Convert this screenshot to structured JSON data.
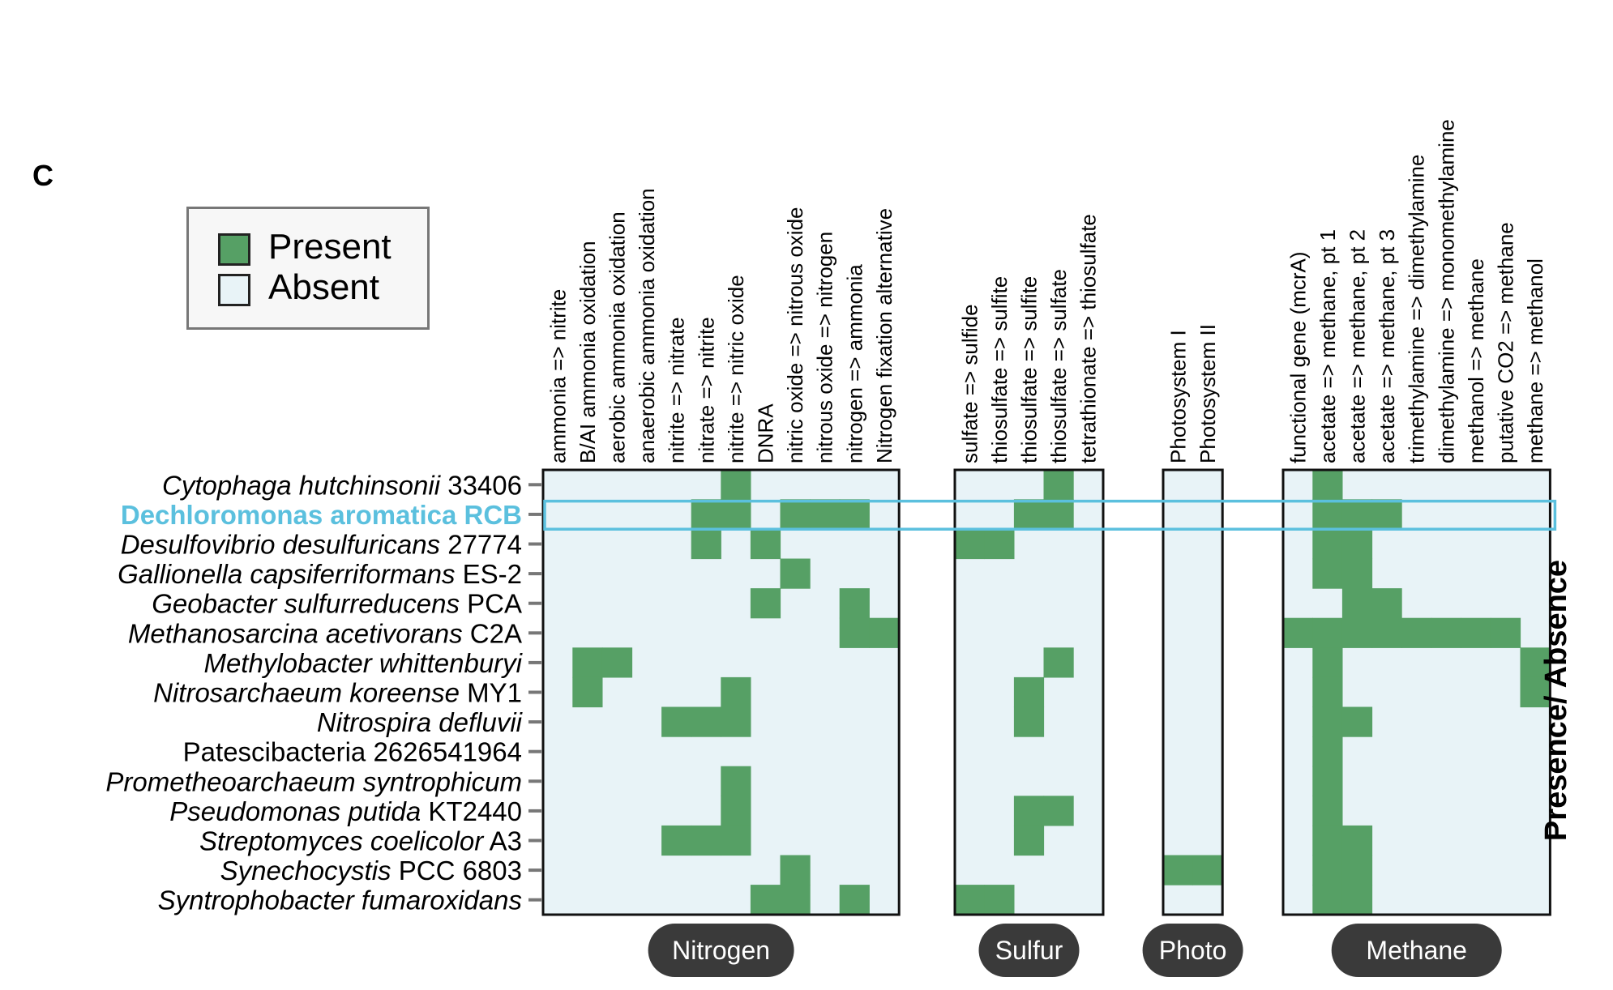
{
  "panel_letter": "C",
  "legend": {
    "present": "Present",
    "absent": "Absent"
  },
  "colors": {
    "present": "#56a065",
    "absent": "#e8f3f7",
    "highlight": "#5bc0de",
    "pill": "#3a3a3a",
    "frame": "#111111"
  },
  "chart_data": {
    "type": "heatmap",
    "value_labels": {
      "1": "Present",
      "0": "Absent"
    },
    "ylabel": "Presence/ Absence",
    "highlighted_row": 1,
    "rows": [
      {
        "name": "Cytophaga hutchinsonii",
        "italic": "Cytophaga hutchinsonii",
        "plain": " 33406",
        "highlight": false
      },
      {
        "name": "Dechloromonas aromatica RCB",
        "italic": "",
        "plain": "Dechloromonas aromatica RCB",
        "highlight": true
      },
      {
        "name": "Desulfovibrio desulfuricans",
        "italic": "Desulfovibrio desulfuricans",
        "plain": " 27774",
        "highlight": false
      },
      {
        "name": "Gallionella capsiferriformans",
        "italic": "Gallionella capsiferriformans",
        "plain": " ES-2",
        "highlight": false
      },
      {
        "name": "Geobacter sulfurreducens",
        "italic": "Geobacter sulfurreducens",
        "plain": " PCA",
        "highlight": false
      },
      {
        "name": "Methanosarcina acetivorans",
        "italic": "Methanosarcina acetivorans",
        "plain": " C2A",
        "highlight": false
      },
      {
        "name": "Methylobacter whittenburyi",
        "italic": "Methylobacter whittenburyi",
        "plain": "",
        "highlight": false
      },
      {
        "name": "Nitrosarchaeum koreense",
        "italic": "Nitrosarchaeum koreense",
        "plain": " MY1",
        "highlight": false
      },
      {
        "name": "Nitrospira defluvii",
        "italic": "Nitrospira defluvii",
        "plain": "",
        "highlight": false
      },
      {
        "name": "Patescibacteria 2626541964",
        "italic": "",
        "plain": "Patescibacteria 2626541964",
        "highlight": false
      },
      {
        "name": "Prometheoarchaeum syntrophicum",
        "italic": "Prometheoarchaeum syntrophicum",
        "plain": "",
        "highlight": false
      },
      {
        "name": "Pseudomonas putida",
        "italic": "Pseudomonas putida",
        "plain": " KT2440",
        "highlight": false
      },
      {
        "name": "Streptomyces coelicolor",
        "italic": "Streptomyces coelicolor",
        "plain": " A3",
        "highlight": false
      },
      {
        "name": "Synechocystis",
        "italic": "Synechocystis",
        "plain": " PCC 6803",
        "highlight": false
      },
      {
        "name": "Syntrophobacter fumaroxidans",
        "italic": "Syntrophobacter fumaroxidans",
        "plain": "",
        "highlight": false
      }
    ],
    "groups": [
      {
        "name": "Nitrogen",
        "columns": [
          "ammonia => nitrite",
          "B/AI ammonia oxidation",
          "aerobic ammonia oxidation",
          "anaerobic ammonia oxidation",
          "nitrite => nitrate",
          "nitrate => nitrite",
          "nitrite => nitric oxide",
          "DNRA",
          "nitric oxide => nitrous oxide",
          "nitrous oxide => nitrogen",
          "nitrogen => ammonia",
          "Nitrogen fixation alternative"
        ],
        "matrix": [
          [
            0,
            0,
            0,
            0,
            0,
            0,
            1,
            0,
            0,
            0,
            0,
            0
          ],
          [
            0,
            0,
            0,
            0,
            0,
            1,
            1,
            0,
            1,
            1,
            1,
            0
          ],
          [
            0,
            0,
            0,
            0,
            0,
            1,
            0,
            1,
            0,
            0,
            0,
            0
          ],
          [
            0,
            0,
            0,
            0,
            0,
            0,
            0,
            0,
            1,
            0,
            0,
            0
          ],
          [
            0,
            0,
            0,
            0,
            0,
            0,
            0,
            1,
            0,
            0,
            1,
            0
          ],
          [
            0,
            0,
            0,
            0,
            0,
            0,
            0,
            0,
            0,
            0,
            1,
            1
          ],
          [
            0,
            1,
            1,
            0,
            0,
            0,
            0,
            0,
            0,
            0,
            0,
            0
          ],
          [
            0,
            1,
            0,
            0,
            0,
            0,
            1,
            0,
            0,
            0,
            0,
            0
          ],
          [
            0,
            0,
            0,
            0,
            1,
            1,
            1,
            0,
            0,
            0,
            0,
            0
          ],
          [
            0,
            0,
            0,
            0,
            0,
            0,
            0,
            0,
            0,
            0,
            0,
            0
          ],
          [
            0,
            0,
            0,
            0,
            0,
            0,
            1,
            0,
            0,
            0,
            0,
            0
          ],
          [
            0,
            0,
            0,
            0,
            0,
            0,
            1,
            0,
            0,
            0,
            0,
            0
          ],
          [
            0,
            0,
            0,
            0,
            1,
            1,
            1,
            0,
            0,
            0,
            0,
            0
          ],
          [
            0,
            0,
            0,
            0,
            0,
            0,
            0,
            0,
            1,
            0,
            0,
            0
          ],
          [
            0,
            0,
            0,
            0,
            0,
            0,
            0,
            1,
            1,
            0,
            1,
            0
          ]
        ]
      },
      {
        "name": "Sulfur",
        "columns": [
          "sulfate => sulfide",
          "thiosulfate => sulfite",
          "thiosulfate => sulfite",
          "thiosulfate => sulfate",
          "tetrathionate => thiosulfate"
        ],
        "matrix": [
          [
            0,
            0,
            0,
            1,
            0
          ],
          [
            0,
            0,
            1,
            1,
            0
          ],
          [
            1,
            1,
            0,
            0,
            0
          ],
          [
            0,
            0,
            0,
            0,
            0
          ],
          [
            0,
            0,
            0,
            0,
            0
          ],
          [
            0,
            0,
            0,
            0,
            0
          ],
          [
            0,
            0,
            0,
            1,
            0
          ],
          [
            0,
            0,
            1,
            0,
            0
          ],
          [
            0,
            0,
            1,
            0,
            0
          ],
          [
            0,
            0,
            0,
            0,
            0
          ],
          [
            0,
            0,
            0,
            0,
            0
          ],
          [
            0,
            0,
            1,
            1,
            0
          ],
          [
            0,
            0,
            1,
            0,
            0
          ],
          [
            0,
            0,
            0,
            0,
            0
          ],
          [
            1,
            1,
            0,
            0,
            0
          ]
        ]
      },
      {
        "name": "Photo",
        "columns": [
          "Photosystem I",
          "Photosystem II"
        ],
        "matrix": [
          [
            0,
            0
          ],
          [
            0,
            0
          ],
          [
            0,
            0
          ],
          [
            0,
            0
          ],
          [
            0,
            0
          ],
          [
            0,
            0
          ],
          [
            0,
            0
          ],
          [
            0,
            0
          ],
          [
            0,
            0
          ],
          [
            0,
            0
          ],
          [
            0,
            0
          ],
          [
            0,
            0
          ],
          [
            0,
            0
          ],
          [
            1,
            1
          ],
          [
            0,
            0
          ]
        ]
      },
      {
        "name": "Methane",
        "columns": [
          "functional gene (mcrA)",
          "acetate => methane, pt 1",
          "acetate => methane, pt 2",
          "acetate => methane, pt 3",
          "trimethylamine => dimethylamine",
          "dimethylamine => monomethylamine",
          "methanol => methane",
          "putative CO2 => methane",
          "methane => methanol"
        ],
        "matrix": [
          [
            0,
            1,
            0,
            0,
            0,
            0,
            0,
            0,
            0
          ],
          [
            0,
            1,
            1,
            1,
            0,
            0,
            0,
            0,
            0
          ],
          [
            0,
            1,
            1,
            0,
            0,
            0,
            0,
            0,
            0
          ],
          [
            0,
            1,
            1,
            0,
            0,
            0,
            0,
            0,
            0
          ],
          [
            0,
            0,
            1,
            1,
            0,
            0,
            0,
            0,
            0
          ],
          [
            1,
            1,
            1,
            1,
            1,
            1,
            1,
            1,
            0
          ],
          [
            0,
            1,
            0,
            0,
            0,
            0,
            0,
            0,
            1
          ],
          [
            0,
            1,
            0,
            0,
            0,
            0,
            0,
            0,
            1
          ],
          [
            0,
            1,
            1,
            0,
            0,
            0,
            0,
            0,
            0
          ],
          [
            0,
            1,
            0,
            0,
            0,
            0,
            0,
            0,
            0
          ],
          [
            0,
            1,
            0,
            0,
            0,
            0,
            0,
            0,
            0
          ],
          [
            0,
            1,
            0,
            0,
            0,
            0,
            0,
            0,
            0
          ],
          [
            0,
            1,
            1,
            0,
            0,
            0,
            0,
            0,
            0
          ],
          [
            0,
            1,
            1,
            0,
            0,
            0,
            0,
            0,
            0
          ],
          [
            0,
            1,
            1,
            0,
            0,
            0,
            0,
            0,
            0
          ]
        ]
      }
    ]
  }
}
